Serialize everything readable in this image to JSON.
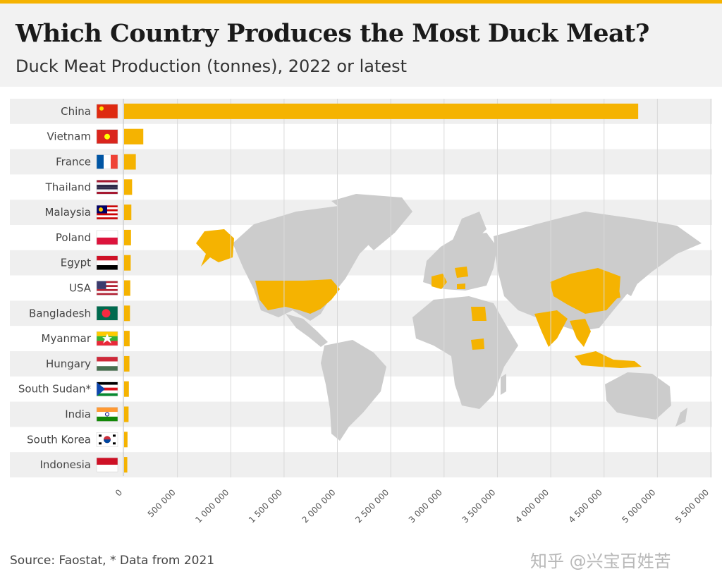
{
  "header": {
    "title": "Which Country Produces the Most Duck Meat?",
    "subtitle": "Duck Meat Production (tonnes), 2022 or latest"
  },
  "footer": {
    "source": "Source: Faostat, * Data from 2021",
    "watermark": "知乎 @兴宝百姓苦"
  },
  "colors": {
    "bar": "#f5b301",
    "map_land": "#cccccc",
    "map_highlight": "#f5b301",
    "row_alt": "#efefef",
    "accent_rule": "#f5b301"
  },
  "flag_icons": [
    "china-flag-icon",
    "vietnam-flag-icon",
    "france-flag-icon",
    "thailand-flag-icon",
    "malaysia-flag-icon",
    "poland-flag-icon",
    "egypt-flag-icon",
    "usa-flag-icon",
    "bangladesh-flag-icon",
    "myanmar-flag-icon",
    "hungary-flag-icon",
    "south-sudan-flag-icon",
    "india-flag-icon",
    "south-korea-flag-icon",
    "indonesia-flag-icon"
  ],
  "chart_data": {
    "type": "bar",
    "orientation": "horizontal",
    "categories": [
      "China",
      "Vietnam",
      "France",
      "Thailand",
      "Malaysia",
      "Poland",
      "Egypt",
      "USA",
      "Bangladesh",
      "Myanmar",
      "Hungary",
      "South Sudan*",
      "India",
      "South Korea",
      "Indonesia"
    ],
    "values": [
      4820000,
      180000,
      110000,
      75000,
      68000,
      65000,
      62000,
      58000,
      55000,
      52000,
      50000,
      45000,
      42000,
      32000,
      30000
    ],
    "xlim": [
      0,
      5500000
    ],
    "ticks": [
      0,
      500000,
      1000000,
      1500000,
      2000000,
      2500000,
      3000000,
      3500000,
      4000000,
      4500000,
      5000000,
      5500000
    ],
    "tick_labels": [
      "0",
      "500 000",
      "1 000 000",
      "1 500 000",
      "2 000 000",
      "2 500 000",
      "3 000 000",
      "3 500 000",
      "4 000 000",
      "4 500 000",
      "5 000 000",
      "5 500 000"
    ],
    "grid": true,
    "legend": "none"
  }
}
